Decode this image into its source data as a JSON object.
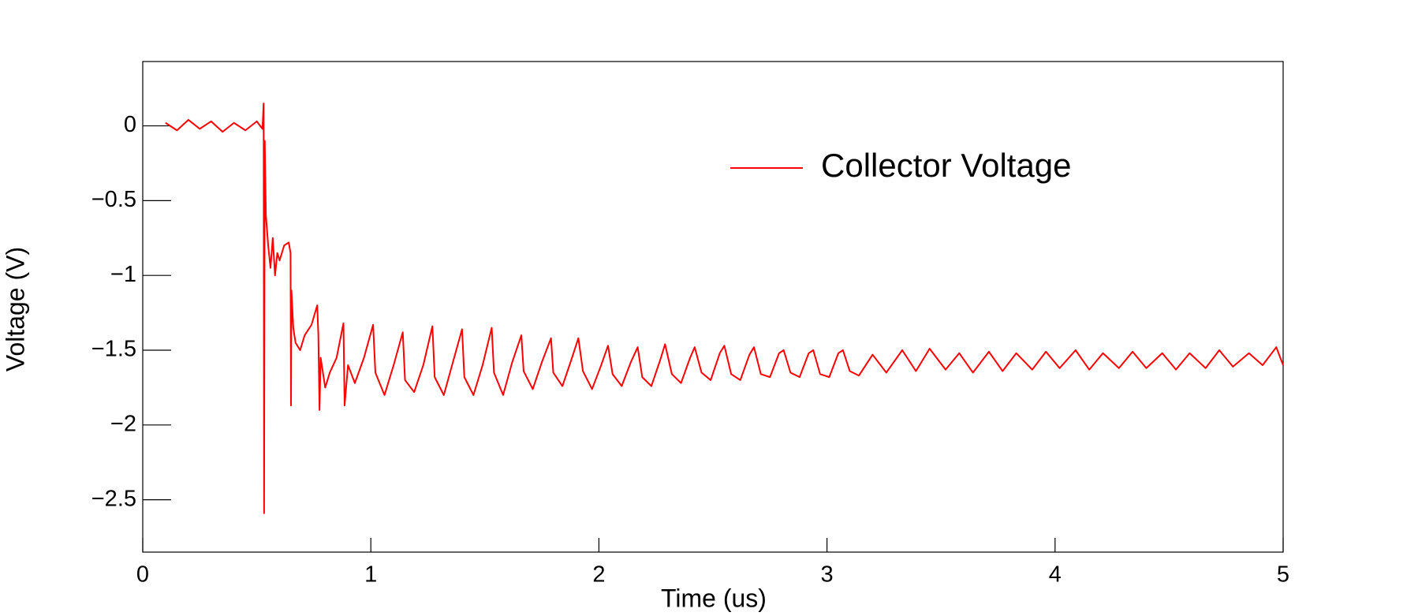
{
  "chart_data": {
    "type": "line",
    "xlabel": "Time (us)",
    "ylabel": "Voltage (V)",
    "xlim": [
      0,
      5
    ],
    "ylim": [
      -2.85,
      0.43
    ],
    "xticks": [
      0,
      1,
      2,
      3,
      4,
      5
    ],
    "yticks": [
      0,
      {
        "value": -0.5,
        "label": "−0.5"
      },
      {
        "value": -1,
        "label": "−1"
      },
      {
        "value": -1.5,
        "label": "−1.5"
      },
      {
        "value": -2,
        "label": "−2"
      },
      {
        "value": -2.5,
        "label": "−2.5"
      }
    ],
    "legend": "top-right",
    "series": [
      {
        "name": "Collector Voltage",
        "color": "#ff0000",
        "x": [
          0.1,
          0.15,
          0.2,
          0.25,
          0.3,
          0.35,
          0.4,
          0.45,
          0.5,
          0.525,
          0.53,
          0.532,
          0.535,
          0.54,
          0.55,
          0.56,
          0.57,
          0.58,
          0.59,
          0.6,
          0.62,
          0.64,
          0.648,
          0.65,
          0.652,
          0.66,
          0.67,
          0.69,
          0.71,
          0.74,
          0.765,
          0.77,
          0.775,
          0.78,
          0.8,
          0.82,
          0.85,
          0.88,
          0.885,
          0.9,
          0.93,
          0.97,
          1.01,
          1.02,
          1.06,
          1.1,
          1.14,
          1.15,
          1.19,
          1.23,
          1.27,
          1.28,
          1.32,
          1.36,
          1.4,
          1.41,
          1.45,
          1.49,
          1.53,
          1.54,
          1.58,
          1.62,
          1.66,
          1.67,
          1.71,
          1.75,
          1.79,
          1.8,
          1.84,
          1.88,
          1.91,
          1.93,
          1.97,
          2.01,
          2.04,
          2.06,
          2.1,
          2.14,
          2.17,
          2.19,
          2.23,
          2.27,
          2.29,
          2.32,
          2.36,
          2.4,
          2.42,
          2.45,
          2.49,
          2.53,
          2.55,
          2.58,
          2.62,
          2.66,
          2.68,
          2.71,
          2.75,
          2.79,
          2.81,
          2.84,
          2.88,
          2.92,
          2.94,
          2.97,
          3.01,
          3.05,
          3.07,
          3.1,
          3.14,
          3.2,
          3.26,
          3.33,
          3.39,
          3.45,
          3.52,
          3.58,
          3.64,
          3.71,
          3.77,
          3.83,
          3.9,
          3.96,
          4.02,
          4.09,
          4.15,
          4.21,
          4.28,
          4.34,
          4.4,
          4.47,
          4.53,
          4.59,
          4.66,
          4.72,
          4.78,
          4.85,
          4.91,
          4.97,
          5.0
        ],
        "values": [
          0.02,
          -0.03,
          0.04,
          -0.02,
          0.03,
          -0.04,
          0.02,
          -0.03,
          0.03,
          -0.02,
          0.15,
          -2.59,
          -0.1,
          -0.6,
          -0.8,
          -0.95,
          -0.75,
          -1.0,
          -0.85,
          -0.9,
          -0.8,
          -0.78,
          -0.85,
          -1.87,
          -1.1,
          -1.35,
          -1.45,
          -1.5,
          -1.4,
          -1.33,
          -1.2,
          -1.4,
          -1.9,
          -1.55,
          -1.75,
          -1.65,
          -1.55,
          -1.32,
          -1.87,
          -1.6,
          -1.72,
          -1.55,
          -1.33,
          -1.65,
          -1.8,
          -1.6,
          -1.38,
          -1.7,
          -1.78,
          -1.6,
          -1.34,
          -1.68,
          -1.8,
          -1.58,
          -1.36,
          -1.68,
          -1.8,
          -1.6,
          -1.35,
          -1.65,
          -1.8,
          -1.58,
          -1.4,
          -1.64,
          -1.76,
          -1.58,
          -1.42,
          -1.65,
          -1.74,
          -1.56,
          -1.42,
          -1.64,
          -1.76,
          -1.6,
          -1.47,
          -1.66,
          -1.74,
          -1.58,
          -1.48,
          -1.68,
          -1.74,
          -1.56,
          -1.46,
          -1.66,
          -1.72,
          -1.55,
          -1.48,
          -1.65,
          -1.7,
          -1.52,
          -1.47,
          -1.66,
          -1.7,
          -1.53,
          -1.48,
          -1.66,
          -1.68,
          -1.52,
          -1.5,
          -1.65,
          -1.68,
          -1.52,
          -1.5,
          -1.66,
          -1.68,
          -1.52,
          -1.5,
          -1.64,
          -1.67,
          -1.53,
          -1.65,
          -1.5,
          -1.64,
          -1.49,
          -1.63,
          -1.52,
          -1.65,
          -1.51,
          -1.64,
          -1.52,
          -1.63,
          -1.51,
          -1.62,
          -1.5,
          -1.63,
          -1.52,
          -1.62,
          -1.51,
          -1.62,
          -1.52,
          -1.63,
          -1.52,
          -1.62,
          -1.5,
          -1.61,
          -1.52,
          -1.6,
          -1.48,
          -1.6
        ]
      }
    ]
  }
}
